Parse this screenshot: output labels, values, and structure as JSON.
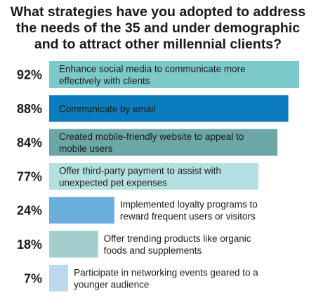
{
  "chart_data": {
    "type": "bar",
    "orientation": "horizontal",
    "title_lines": [
      "What strategies have you adopted to address",
      "the needs of the 35 and under demographic",
      "and to attract other millennial clients?"
    ],
    "categories": [
      [
        "Enhance social media to communicate more",
        "effectively with clients"
      ],
      [
        "Communicate by email"
      ],
      [
        "Created mobile-friendly website to appeal to",
        "mobile users"
      ],
      [
        "Offer third-party payment to assist with",
        "unexpected pet expenses"
      ],
      [
        "Implemented loyalty programs to",
        "reward frequent users or visitors"
      ],
      [
        "Offer trending products like organic",
        "foods and supplements"
      ],
      [
        "Participate in networking events geared to a",
        "younger audience"
      ]
    ],
    "values": [
      92,
      88,
      84,
      77,
      24,
      18,
      7
    ],
    "value_labels": [
      "92%",
      "88%",
      "84%",
      "77%",
      "24%",
      "18%",
      "7%"
    ],
    "colors": [
      "#7cc9c9",
      "#0b7dbf",
      "#6ba7a7",
      "#b4e0e2",
      "#6aaedb",
      "#a2cfcd",
      "#bcd8ee"
    ],
    "xlim": [
      0,
      100
    ],
    "grid": false,
    "legend": "none"
  }
}
